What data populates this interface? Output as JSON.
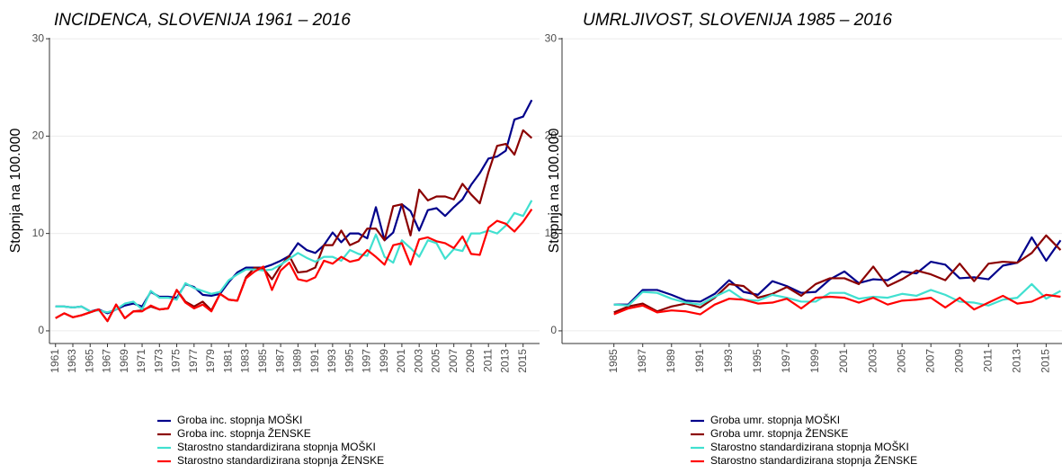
{
  "chart_data": [
    {
      "type": "line",
      "title": "INCIDENCA, SLOVENIJA 1961 – 2016",
      "ylabel": "Stopnja na 100.000",
      "x": [
        1961,
        1962,
        1963,
        1964,
        1965,
        1966,
        1967,
        1968,
        1969,
        1970,
        1971,
        1972,
        1973,
        1974,
        1975,
        1976,
        1977,
        1978,
        1979,
        1980,
        1981,
        1982,
        1983,
        1984,
        1985,
        1986,
        1987,
        1988,
        1989,
        1990,
        1991,
        1992,
        1993,
        1994,
        1995,
        1996,
        1997,
        1998,
        1999,
        2000,
        2001,
        2002,
        2003,
        2004,
        2005,
        2006,
        2007,
        2008,
        2009,
        2010,
        2011,
        2012,
        2013,
        2014,
        2015,
        2016
      ],
      "series": [
        {
          "name": "Groba inc. stopnja MOŠKI",
          "color": "#00008b",
          "values": [
            2.5,
            2.5,
            2.4,
            2.5,
            2.0,
            2.2,
            1.8,
            2.2,
            2.6,
            2.8,
            2.5,
            4.0,
            3.5,
            3.5,
            3.4,
            4.8,
            4.5,
            3.7,
            3.6,
            3.8,
            5.0,
            6.0,
            6.5,
            6.5,
            6.5,
            6.8,
            7.2,
            7.7,
            9.0,
            8.3,
            8.0,
            8.8,
            10.1,
            9.1,
            10.0,
            10.0,
            9.5,
            12.7,
            9.3,
            10.1,
            13.0,
            12.3,
            10.3,
            12.4,
            12.6,
            11.8,
            12.7,
            13.5,
            15.0,
            16.2,
            17.7,
            17.9,
            18.5,
            21.7,
            22.0,
            23.7
          ]
        },
        {
          "name": "Groba inc. stopnja ŽENSKE",
          "color": "#8b0000",
          "values": [
            1.3,
            1.8,
            1.4,
            1.6,
            1.9,
            2.2,
            1.0,
            2.7,
            1.3,
            2.0,
            2.1,
            2.5,
            2.2,
            2.3,
            4.2,
            3.0,
            2.5,
            3.0,
            2.1,
            3.8,
            3.2,
            3.1,
            5.5,
            6.5,
            6.4,
            5.3,
            6.7,
            7.7,
            6.0,
            6.1,
            6.5,
            8.8,
            8.8,
            10.3,
            8.8,
            9.2,
            10.5,
            10.5,
            9.3,
            12.8,
            13.0,
            9.8,
            14.5,
            13.4,
            13.8,
            13.8,
            13.5,
            15.1,
            14.0,
            13.1,
            16.3,
            19.0,
            19.2,
            18.1,
            20.6,
            19.8
          ]
        },
        {
          "name": "Starostno standardizirana stopnja MOŠKI",
          "color": "#40e0d0",
          "values": [
            2.5,
            2.5,
            2.4,
            2.5,
            2.0,
            2.1,
            1.9,
            2.2,
            2.8,
            3.0,
            2.2,
            4.1,
            3.4,
            3.4,
            3.2,
            4.9,
            4.4,
            4.1,
            3.8,
            4.0,
            5.2,
            5.8,
            6.3,
            6.3,
            6.2,
            6.3,
            6.8,
            7.4,
            8.0,
            7.5,
            7.1,
            7.6,
            7.6,
            7.2,
            8.3,
            7.9,
            7.7,
            9.9,
            7.6,
            7.0,
            9.3,
            8.5,
            7.6,
            9.3,
            9.0,
            7.4,
            8.4,
            8.2,
            10.0,
            10.0,
            10.3,
            10.0,
            10.8,
            12.1,
            11.8,
            13.4
          ]
        },
        {
          "name": "Starostno standardizirana stopnja ŽENSKE",
          "color": "#ff0000",
          "values": [
            1.3,
            1.8,
            1.4,
            1.6,
            1.9,
            2.2,
            1.0,
            2.7,
            1.3,
            2.0,
            2.0,
            2.6,
            2.2,
            2.3,
            4.2,
            2.9,
            2.3,
            2.7,
            2.0,
            3.8,
            3.2,
            3.1,
            5.4,
            6.1,
            6.6,
            4.2,
            6.2,
            7.0,
            5.3,
            5.1,
            5.5,
            7.2,
            6.9,
            7.6,
            7.1,
            7.3,
            8.3,
            7.6,
            6.8,
            8.8,
            9.0,
            6.8,
            9.4,
            9.6,
            9.2,
            9.0,
            8.5,
            9.7,
            7.9,
            7.8,
            10.6,
            11.3,
            11.0,
            10.2,
            11.2,
            12.5
          ]
        }
      ],
      "xlim": [
        1960.3,
        2016.9
      ],
      "xticks": [
        1961,
        1963,
        1965,
        1967,
        1969,
        1971,
        1973,
        1975,
        1977,
        1979,
        1981,
        1983,
        1985,
        1987,
        1989,
        1991,
        1993,
        1995,
        1997,
        1999,
        2001,
        2003,
        2005,
        2007,
        2009,
        2011,
        2013,
        2015
      ],
      "ylim": [
        -1.3,
        30.1
      ],
      "yticks": [
        0,
        10,
        20,
        30
      ],
      "grid": true,
      "legend": "bottom"
    },
    {
      "type": "line",
      "title": "UMRLJIVOST, SLOVENIJA 1985 – 2016",
      "ylabel": "Stopnja na 100.000",
      "x": [
        1985,
        1986,
        1987,
        1988,
        1989,
        1990,
        1991,
        1992,
        1993,
        1994,
        1995,
        1996,
        1997,
        1998,
        1999,
        2000,
        2001,
        2002,
        2003,
        2004,
        2005,
        2006,
        2007,
        2008,
        2009,
        2010,
        2011,
        2012,
        2013,
        2014,
        2015,
        2016
      ],
      "series": [
        {
          "name": "Groba umr. stopnja MOŠKI",
          "color": "#00008b",
          "values": [
            2.7,
            2.7,
            4.2,
            4.2,
            3.7,
            3.1,
            3.0,
            3.8,
            5.2,
            4.0,
            3.7,
            5.1,
            4.6,
            3.9,
            4.0,
            5.3,
            6.1,
            4.9,
            5.3,
            5.2,
            6.1,
            5.9,
            7.1,
            6.8,
            5.4,
            5.5,
            5.3,
            6.7,
            7.0,
            9.6,
            7.2,
            9.3
          ]
        },
        {
          "name": "Groba umr. stopnja ŽENSKE",
          "color": "#8b0000",
          "values": [
            1.9,
            2.5,
            2.8,
            2.0,
            2.5,
            2.8,
            2.4,
            3.4,
            4.8,
            4.6,
            3.4,
            3.8,
            4.5,
            3.6,
            4.8,
            5.4,
            5.4,
            4.8,
            6.6,
            4.6,
            5.3,
            6.2,
            5.8,
            5.2,
            6.9,
            5.1,
            6.9,
            7.1,
            7.0,
            8.0,
            9.8,
            8.3
          ]
        },
        {
          "name": "Starostno standardizirana stopnja MOŠKI",
          "color": "#40e0d0",
          "values": [
            2.7,
            2.6,
            4.0,
            3.9,
            3.3,
            2.9,
            2.7,
            3.5,
            4.2,
            3.2,
            3.1,
            3.7,
            3.4,
            3.0,
            3.0,
            3.9,
            3.9,
            3.3,
            3.5,
            3.4,
            3.8,
            3.6,
            4.2,
            3.7,
            3.0,
            2.9,
            2.6,
            3.2,
            3.4,
            4.8,
            3.3,
            4.1
          ]
        },
        {
          "name": "Starostno standardizirana stopnja ŽENSKE",
          "color": "#ff0000",
          "values": [
            1.7,
            2.3,
            2.6,
            1.9,
            2.1,
            2.0,
            1.7,
            2.7,
            3.3,
            3.2,
            2.8,
            2.9,
            3.3,
            2.3,
            3.4,
            3.5,
            3.4,
            2.9,
            3.4,
            2.7,
            3.1,
            3.2,
            3.4,
            2.4,
            3.4,
            2.2,
            2.9,
            3.6,
            2.8,
            3.0,
            3.7,
            3.5
          ]
        }
      ],
      "xlim": [
        1981.4,
        2016.1
      ],
      "xticks": [
        1985,
        1987,
        1989,
        1991,
        1993,
        1995,
        1997,
        1999,
        2001,
        2003,
        2005,
        2007,
        2009,
        2011,
        2013,
        2015
      ],
      "ylim": [
        -1.3,
        30.1
      ],
      "yticks": [
        0,
        10,
        20,
        30
      ],
      "grid": true,
      "legend": "bottom"
    }
  ]
}
